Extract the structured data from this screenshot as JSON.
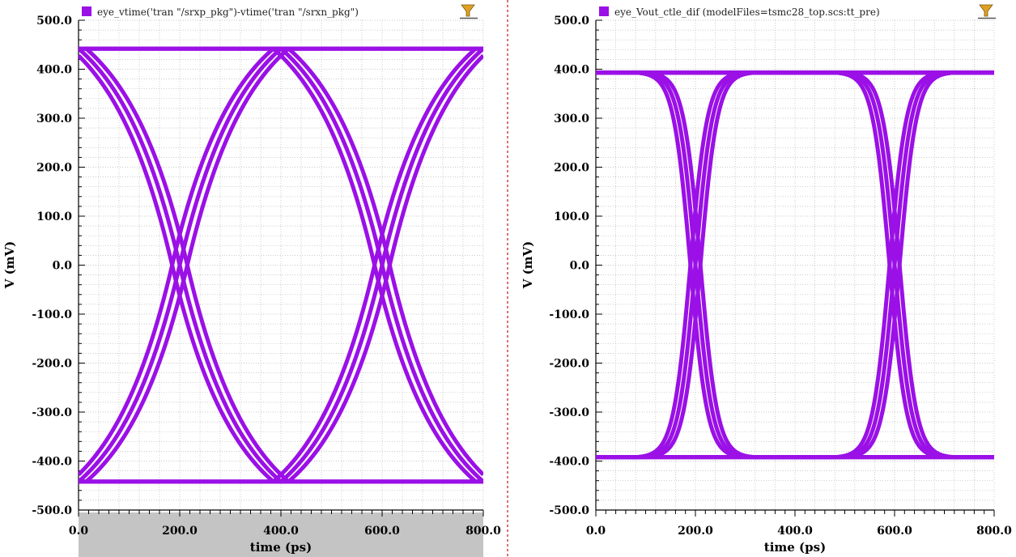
{
  "colors": {
    "trace": "#9a10e6",
    "grid": "#b8b8b8",
    "divider": "#d04040",
    "xaxis_band": "#c4c4c4",
    "filter_icon": "#e0a020"
  },
  "icons": {
    "legend_filter": "filter-icon"
  },
  "chart_data": [
    {
      "type": "line",
      "chart_kind": "eye-diagram",
      "legend": "eye_vtime('tran \"/srxp_pkg\")-vtime('tran \"/srxn_pkg\")",
      "legend_position": "top-left",
      "xlabel": "time (ps)",
      "ylabel": "V (mV)",
      "xlim": [
        0,
        800
      ],
      "ylim": [
        -500,
        500
      ],
      "xticks": [
        0,
        200,
        400,
        600,
        800
      ],
      "xtick_labels": [
        "0.0",
        "200.0",
        "400.0",
        "600.0",
        "800.0"
      ],
      "yticks": [
        500,
        400,
        300,
        200,
        100,
        0,
        -100,
        -200,
        -300,
        -400,
        -500
      ],
      "ytick_labels": [
        "500.0",
        "400.0",
        "300.0",
        "200.0",
        "100.0",
        "0.0",
        "-100.0",
        "-200.0",
        "-300.0",
        "-400.0",
        "-500.0"
      ],
      "grid": true,
      "x_axis_band": true,
      "level_high": 442,
      "level_low": -442,
      "crossing_times": [
        200,
        600
      ],
      "transition_halfwidth": 200,
      "edge_shape": "slow-exponential",
      "transition_offsets": [
        -15,
        0,
        15
      ],
      "trace_width": 5
    },
    {
      "type": "line",
      "chart_kind": "eye-diagram",
      "legend": "eye_Vout_ctle_dif (modelFiles=tsmc28_top.scs:tt_pre)",
      "legend_position": "top-left",
      "xlabel": "time (ps)",
      "ylabel": "V (mV)",
      "xlim": [
        0,
        800
      ],
      "ylim": [
        -500,
        500
      ],
      "xticks": [
        0,
        200,
        400,
        600,
        800
      ],
      "xtick_labels": [
        "0.0",
        "200.0",
        "400.0",
        "600.0",
        "800.0"
      ],
      "yticks": [
        500,
        400,
        300,
        200,
        100,
        0,
        -100,
        -200,
        -300,
        -400,
        -500
      ],
      "ytick_labels": [
        "500.0",
        "400.0",
        "300.0",
        "200.0",
        "100.0",
        "0.0",
        "-100.0",
        "-200.0",
        "-300.0",
        "-400.0",
        "-500.0"
      ],
      "grid": true,
      "x_axis_band": false,
      "level_high": 393,
      "level_low": -392,
      "crossing_times": [
        200,
        600
      ],
      "transition_halfwidth": 110,
      "edge_shape": "tanh",
      "transition_offsets": [
        -10,
        0,
        10
      ],
      "trace_width": 5
    }
  ]
}
